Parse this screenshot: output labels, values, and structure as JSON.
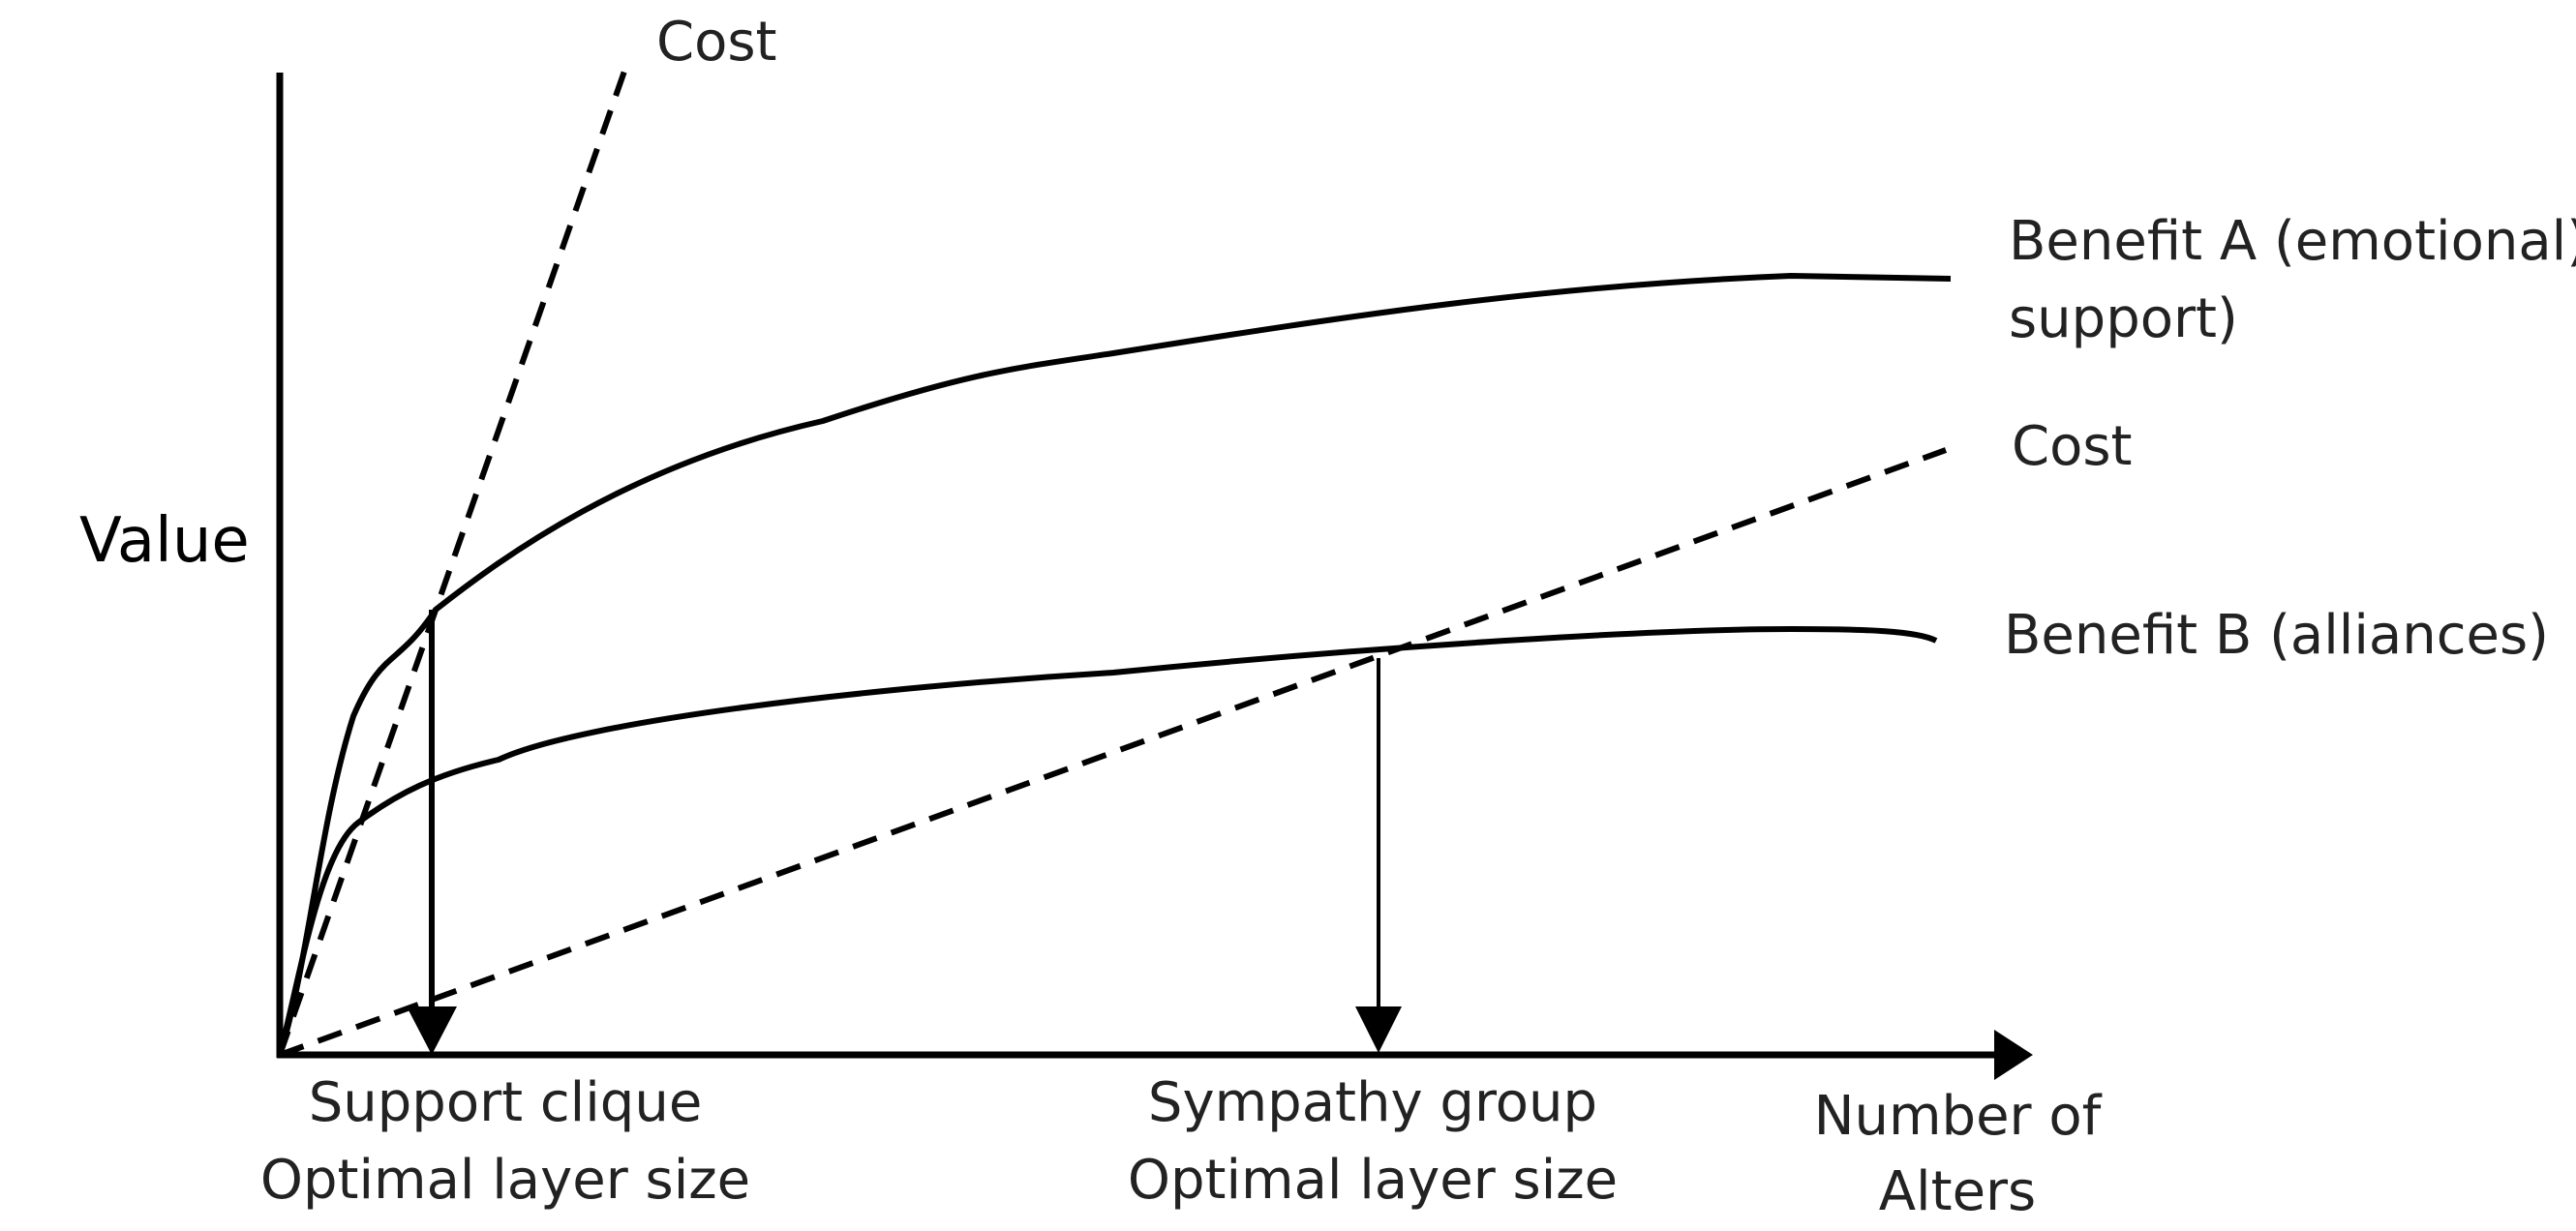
{
  "axes": {
    "y_label": "Value",
    "x_label_line1": "Number of",
    "x_label_line2": "Alters"
  },
  "curves": {
    "cost_steep_label": "Cost",
    "cost_shallow_label": "Cost",
    "benefit_a_line1": "Benefit A (emotional)",
    "benefit_a_line2": "support)",
    "benefit_b_label": "Benefit B (alliances)"
  },
  "markers": {
    "support_line1": "Support clique",
    "support_line2": "Optimal layer size",
    "sympathy_line1": "Sympathy group",
    "sympathy_line2": "Optimal layer size"
  },
  "colors": {
    "ink": "#000000",
    "label": "#222222"
  }
}
